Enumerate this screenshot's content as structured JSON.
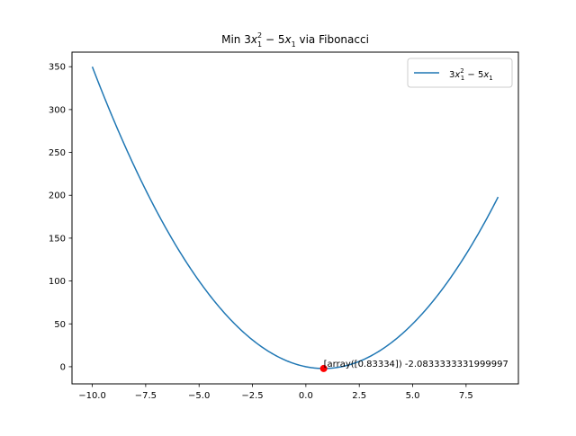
{
  "chart_data": {
    "type": "line",
    "title": {
      "prefix": "Min 3",
      "x": "x",
      "sup": "2",
      "sub": "1",
      "mid": " − 5",
      "suffix": " via Fibonacci"
    },
    "xlabel": "",
    "ylabel": "",
    "xlim": [
      -10.95,
      9.95
    ],
    "ylim": [
      -20.0,
      367.0
    ],
    "x_ticks": [
      -10.0,
      -7.5,
      -5.0,
      -2.5,
      0.0,
      2.5,
      5.0,
      7.5
    ],
    "x_tick_labels": [
      "−10.0",
      "−7.5",
      "−5.0",
      "−2.5",
      "0.0",
      "2.5",
      "5.0",
      "7.5"
    ],
    "y_ticks": [
      0,
      50,
      100,
      150,
      200,
      250,
      300,
      350
    ],
    "y_tick_labels": [
      "0",
      "50",
      "100",
      "150",
      "200",
      "250",
      "300",
      "350"
    ],
    "grid": false,
    "series": [
      {
        "name": "3x_1^2 - 5x_1",
        "color": "#1f77b4",
        "function": "3*x^2 - 5*x",
        "x_range": [
          -10,
          9
        ]
      }
    ],
    "legend": {
      "placement": "top-right",
      "label": {
        "prefix": "3",
        "x": "x",
        "sup": "2",
        "sub": "1",
        "mid": " − 5"
      }
    },
    "minimum_point": {
      "x": 0.83334,
      "y": -2.0833333332,
      "color": "#ff0000",
      "label": "[array([0.83334]) -2.0833333331999997"
    }
  }
}
